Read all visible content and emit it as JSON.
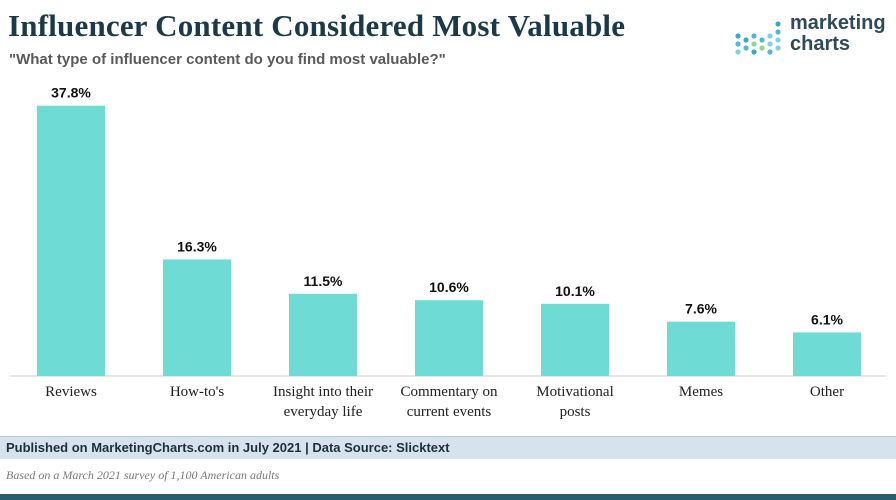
{
  "header": {
    "title": "Influencer Content Considered Most Valuable",
    "subtitle": "\"What type of influencer content do you find most valuable?\""
  },
  "logo": {
    "line1": "marketing",
    "line2": "charts"
  },
  "chart_data": {
    "type": "bar",
    "title": "Influencer Content Considered Most Valuable",
    "subtitle": "\"What type of influencer content do you find most valuable?\"",
    "xlabel": "",
    "ylabel": "",
    "categories": [
      [
        "Reviews"
      ],
      [
        "How-to's"
      ],
      [
        "Insight into their",
        "everyday life"
      ],
      [
        "Commentary on",
        "current events"
      ],
      [
        "Motivational",
        "posts"
      ],
      [
        "Memes"
      ],
      [
        "Other"
      ]
    ],
    "values": [
      37.8,
      16.3,
      11.5,
      10.6,
      10.1,
      7.6,
      6.1
    ],
    "value_labels": [
      "37.8%",
      "16.3%",
      "11.5%",
      "10.6%",
      "10.1%",
      "7.6%",
      "6.1%"
    ],
    "ylim": [
      0,
      40
    ],
    "bar_color": "#6edbd5",
    "grid": false,
    "legend": "none"
  },
  "footer": {
    "published": "Published on MarketingCharts.com in July 2021 | Data Source: Slicktext",
    "note": "Based on a March 2021 survey of 1,100 American adults"
  },
  "colors": {
    "title": "#1a3a4a",
    "bar": "#6edbd5",
    "footer_band": "#d6e3ec",
    "bottom_rule": "#2a5d6e"
  }
}
